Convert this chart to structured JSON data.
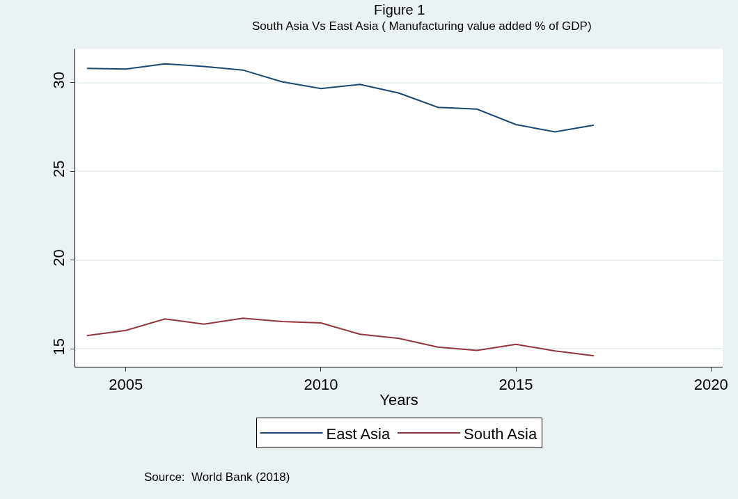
{
  "chart_data": {
    "type": "line",
    "title": "Figure 1",
    "subtitle": "South Asia Vs East Asia ( Manufacturing value added % of GDP)",
    "xlabel": "Years",
    "x": [
      2004,
      2005,
      2006,
      2007,
      2008,
      2009,
      2010,
      2011,
      2012,
      2013,
      2014,
      2015,
      2016,
      2017
    ],
    "series": [
      {
        "name": "East Asia",
        "color": "#1a476f",
        "values": [
          30.79,
          30.75,
          31.05,
          30.9,
          30.7,
          30.04,
          29.66,
          29.89,
          29.4,
          28.6,
          28.5,
          27.63,
          27.22,
          27.6
        ]
      },
      {
        "name": "South Asia",
        "color": "#90353b",
        "values": [
          15.75,
          16.05,
          16.69,
          16.4,
          16.73,
          16.55,
          16.47,
          15.83,
          15.6,
          15.11,
          14.92,
          15.26,
          14.89,
          14.62
        ]
      }
    ],
    "xlim": [
      2003.7,
      2020.3
    ],
    "xticks": [
      2005,
      2010,
      2015,
      2020
    ],
    "ylim": [
      14.0,
      31.9
    ],
    "yticks": [
      15,
      20,
      25,
      30
    ],
    "grid": "y",
    "legend": "bottom",
    "marker": "none",
    "line_style": "solid",
    "annotations": [
      "Source:  World Bank (2018)"
    ]
  }
}
